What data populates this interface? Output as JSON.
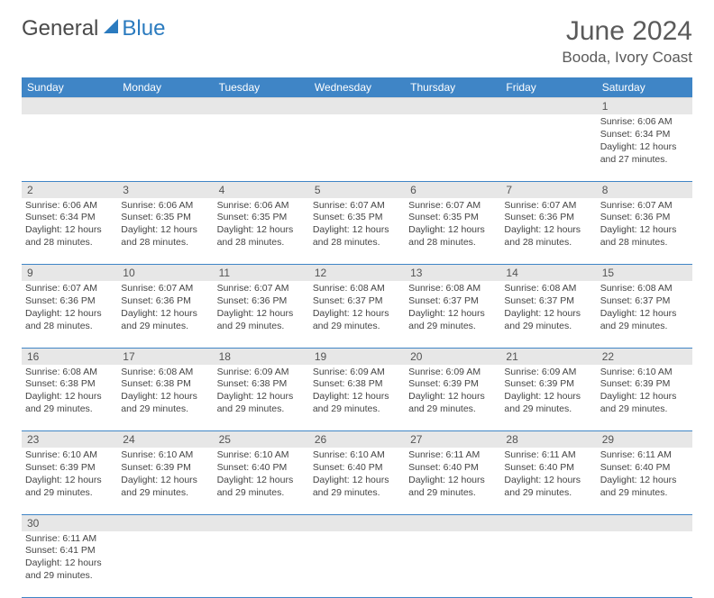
{
  "logo": {
    "general": "General",
    "blue": "Blue"
  },
  "header": {
    "month_title": "June 2024",
    "location": "Booda, Ivory Coast"
  },
  "colors": {
    "header_bg": "#3f85c6",
    "header_text": "#ffffff",
    "daynum_bg": "#e7e7e7",
    "cell_border": "#3f85c6",
    "body_text": "#444444",
    "title_text": "#5a5a5a"
  },
  "typography": {
    "month_title_pt": 30,
    "location_pt": 17,
    "day_header_pt": 12,
    "daynum_pt": 12,
    "cell_pt": 10.5
  },
  "day_names": [
    "Sunday",
    "Monday",
    "Tuesday",
    "Wednesday",
    "Thursday",
    "Friday",
    "Saturday"
  ],
  "weeks": [
    {
      "nums": [
        "",
        "",
        "",
        "",
        "",
        "",
        "1"
      ],
      "cells": [
        null,
        null,
        null,
        null,
        null,
        null,
        {
          "sunrise": "Sunrise: 6:06 AM",
          "sunset": "Sunset: 6:34 PM",
          "daylight1": "Daylight: 12 hours",
          "daylight2": "and 27 minutes."
        }
      ]
    },
    {
      "nums": [
        "2",
        "3",
        "4",
        "5",
        "6",
        "7",
        "8"
      ],
      "cells": [
        {
          "sunrise": "Sunrise: 6:06 AM",
          "sunset": "Sunset: 6:34 PM",
          "daylight1": "Daylight: 12 hours",
          "daylight2": "and 28 minutes."
        },
        {
          "sunrise": "Sunrise: 6:06 AM",
          "sunset": "Sunset: 6:35 PM",
          "daylight1": "Daylight: 12 hours",
          "daylight2": "and 28 minutes."
        },
        {
          "sunrise": "Sunrise: 6:06 AM",
          "sunset": "Sunset: 6:35 PM",
          "daylight1": "Daylight: 12 hours",
          "daylight2": "and 28 minutes."
        },
        {
          "sunrise": "Sunrise: 6:07 AM",
          "sunset": "Sunset: 6:35 PM",
          "daylight1": "Daylight: 12 hours",
          "daylight2": "and 28 minutes."
        },
        {
          "sunrise": "Sunrise: 6:07 AM",
          "sunset": "Sunset: 6:35 PM",
          "daylight1": "Daylight: 12 hours",
          "daylight2": "and 28 minutes."
        },
        {
          "sunrise": "Sunrise: 6:07 AM",
          "sunset": "Sunset: 6:36 PM",
          "daylight1": "Daylight: 12 hours",
          "daylight2": "and 28 minutes."
        },
        {
          "sunrise": "Sunrise: 6:07 AM",
          "sunset": "Sunset: 6:36 PM",
          "daylight1": "Daylight: 12 hours",
          "daylight2": "and 28 minutes."
        }
      ]
    },
    {
      "nums": [
        "9",
        "10",
        "11",
        "12",
        "13",
        "14",
        "15"
      ],
      "cells": [
        {
          "sunrise": "Sunrise: 6:07 AM",
          "sunset": "Sunset: 6:36 PM",
          "daylight1": "Daylight: 12 hours",
          "daylight2": "and 28 minutes."
        },
        {
          "sunrise": "Sunrise: 6:07 AM",
          "sunset": "Sunset: 6:36 PM",
          "daylight1": "Daylight: 12 hours",
          "daylight2": "and 29 minutes."
        },
        {
          "sunrise": "Sunrise: 6:07 AM",
          "sunset": "Sunset: 6:36 PM",
          "daylight1": "Daylight: 12 hours",
          "daylight2": "and 29 minutes."
        },
        {
          "sunrise": "Sunrise: 6:08 AM",
          "sunset": "Sunset: 6:37 PM",
          "daylight1": "Daylight: 12 hours",
          "daylight2": "and 29 minutes."
        },
        {
          "sunrise": "Sunrise: 6:08 AM",
          "sunset": "Sunset: 6:37 PM",
          "daylight1": "Daylight: 12 hours",
          "daylight2": "and 29 minutes."
        },
        {
          "sunrise": "Sunrise: 6:08 AM",
          "sunset": "Sunset: 6:37 PM",
          "daylight1": "Daylight: 12 hours",
          "daylight2": "and 29 minutes."
        },
        {
          "sunrise": "Sunrise: 6:08 AM",
          "sunset": "Sunset: 6:37 PM",
          "daylight1": "Daylight: 12 hours",
          "daylight2": "and 29 minutes."
        }
      ]
    },
    {
      "nums": [
        "16",
        "17",
        "18",
        "19",
        "20",
        "21",
        "22"
      ],
      "cells": [
        {
          "sunrise": "Sunrise: 6:08 AM",
          "sunset": "Sunset: 6:38 PM",
          "daylight1": "Daylight: 12 hours",
          "daylight2": "and 29 minutes."
        },
        {
          "sunrise": "Sunrise: 6:08 AM",
          "sunset": "Sunset: 6:38 PM",
          "daylight1": "Daylight: 12 hours",
          "daylight2": "and 29 minutes."
        },
        {
          "sunrise": "Sunrise: 6:09 AM",
          "sunset": "Sunset: 6:38 PM",
          "daylight1": "Daylight: 12 hours",
          "daylight2": "and 29 minutes."
        },
        {
          "sunrise": "Sunrise: 6:09 AM",
          "sunset": "Sunset: 6:38 PM",
          "daylight1": "Daylight: 12 hours",
          "daylight2": "and 29 minutes."
        },
        {
          "sunrise": "Sunrise: 6:09 AM",
          "sunset": "Sunset: 6:39 PM",
          "daylight1": "Daylight: 12 hours",
          "daylight2": "and 29 minutes."
        },
        {
          "sunrise": "Sunrise: 6:09 AM",
          "sunset": "Sunset: 6:39 PM",
          "daylight1": "Daylight: 12 hours",
          "daylight2": "and 29 minutes."
        },
        {
          "sunrise": "Sunrise: 6:10 AM",
          "sunset": "Sunset: 6:39 PM",
          "daylight1": "Daylight: 12 hours",
          "daylight2": "and 29 minutes."
        }
      ]
    },
    {
      "nums": [
        "23",
        "24",
        "25",
        "26",
        "27",
        "28",
        "29"
      ],
      "cells": [
        {
          "sunrise": "Sunrise: 6:10 AM",
          "sunset": "Sunset: 6:39 PM",
          "daylight1": "Daylight: 12 hours",
          "daylight2": "and 29 minutes."
        },
        {
          "sunrise": "Sunrise: 6:10 AM",
          "sunset": "Sunset: 6:39 PM",
          "daylight1": "Daylight: 12 hours",
          "daylight2": "and 29 minutes."
        },
        {
          "sunrise": "Sunrise: 6:10 AM",
          "sunset": "Sunset: 6:40 PM",
          "daylight1": "Daylight: 12 hours",
          "daylight2": "and 29 minutes."
        },
        {
          "sunrise": "Sunrise: 6:10 AM",
          "sunset": "Sunset: 6:40 PM",
          "daylight1": "Daylight: 12 hours",
          "daylight2": "and 29 minutes."
        },
        {
          "sunrise": "Sunrise: 6:11 AM",
          "sunset": "Sunset: 6:40 PM",
          "daylight1": "Daylight: 12 hours",
          "daylight2": "and 29 minutes."
        },
        {
          "sunrise": "Sunrise: 6:11 AM",
          "sunset": "Sunset: 6:40 PM",
          "daylight1": "Daylight: 12 hours",
          "daylight2": "and 29 minutes."
        },
        {
          "sunrise": "Sunrise: 6:11 AM",
          "sunset": "Sunset: 6:40 PM",
          "daylight1": "Daylight: 12 hours",
          "daylight2": "and 29 minutes."
        }
      ]
    },
    {
      "nums": [
        "30",
        "",
        "",
        "",
        "",
        "",
        ""
      ],
      "cells": [
        {
          "sunrise": "Sunrise: 6:11 AM",
          "sunset": "Sunset: 6:41 PM",
          "daylight1": "Daylight: 12 hours",
          "daylight2": "and 29 minutes."
        },
        null,
        null,
        null,
        null,
        null,
        null
      ]
    }
  ]
}
